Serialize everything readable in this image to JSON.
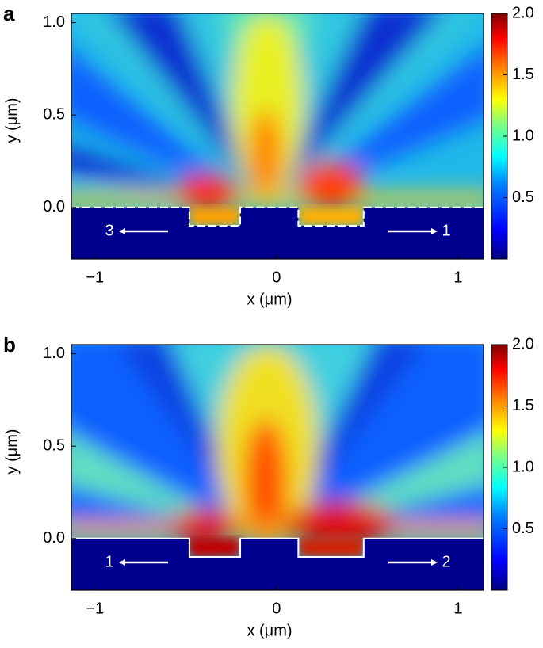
{
  "chart_data": [
    {
      "type": "heatmap",
      "panel_label": "a",
      "xlabel": "x (μm)",
      "ylabel": "y (μm)",
      "xlim": [
        -1.13,
        1.14
      ],
      "ylim": [
        -0.28,
        1.05
      ],
      "xticks": [
        {
          "value": -1,
          "label": "−1"
        },
        0,
        1
      ],
      "yticks": [
        {
          "value": 0,
          "label": "0.0"
        },
        0.5,
        {
          "value": 1,
          "label": "1.0"
        }
      ],
      "colorbar": {
        "clim": [
          0,
          2.0
        ],
        "ticks": [
          0.5,
          {
            "value": 1,
            "label": "1.0"
          },
          1.5,
          {
            "value": 2,
            "label": "2.0"
          }
        ]
      },
      "annotations": [
        "3",
        "1"
      ]
    },
    {
      "type": "heatmap",
      "panel_label": "b",
      "xlabel": "x (μm)",
      "ylabel": "y (μm)",
      "xlim": [
        -1.13,
        1.14
      ],
      "ylim": [
        -0.28,
        1.05
      ],
      "xticks": [
        {
          "value": -1,
          "label": "−1"
        },
        0,
        1
      ],
      "yticks": [
        {
          "value": 0,
          "label": "0.0"
        },
        0.5,
        {
          "value": 1,
          "label": "1.0"
        }
      ],
      "colorbar": {
        "clim": [
          0,
          2.0
        ],
        "ticks": [
          0.5,
          {
            "value": 1,
            "label": "1.0"
          },
          1.5,
          {
            "value": 2,
            "label": "2.0"
          }
        ]
      },
      "annotations": [
        "1",
        "2"
      ]
    }
  ]
}
